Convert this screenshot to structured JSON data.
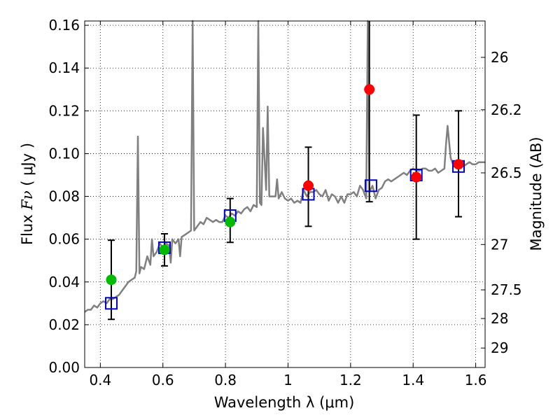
{
  "chart_data": {
    "type": "scatter",
    "xlabel": "Wavelength  λ (μm)",
    "ylabel_prefix": "Flux ",
    "ylabel_symbol": "Fν",
    "ylabel_units": " ( μJy )",
    "ylabel_right": "Magnitude (AB)",
    "xlim": [
      0.35,
      1.63
    ],
    "ylim": [
      0.0,
      0.162
    ],
    "x_ticks": [
      0.4,
      0.6,
      0.8,
      1.0,
      1.2,
      1.4,
      1.6
    ],
    "x_tick_labels": [
      "0.4",
      "0.6",
      "0.8",
      "1",
      "1.2",
      "1.4",
      "1.6"
    ],
    "y_ticks": [
      0.0,
      0.02,
      0.04,
      0.06,
      0.08,
      0.1,
      0.12,
      0.14,
      0.16
    ],
    "y_tick_labels": [
      "0.00",
      "0.02",
      "0.04",
      "0.06",
      "0.08",
      "0.10",
      "0.12",
      "0.14",
      "0.16"
    ],
    "right_ticks": [
      {
        "flux": 0.145,
        "label": "26"
      },
      {
        "flux": 0.1205,
        "label": "26.2"
      },
      {
        "flux": 0.091,
        "label": "26.5"
      },
      {
        "flux": 0.0575,
        "label": "27"
      },
      {
        "flux": 0.0363,
        "label": "27.5"
      },
      {
        "flux": 0.0229,
        "label": "28"
      },
      {
        "flux": 0.0091,
        "label": "29"
      }
    ],
    "grid": true,
    "colors": {
      "spectrum": "#808080",
      "model_box": "#0000cc",
      "optical": "#00bb00",
      "nir": "#ff0000",
      "errorbar": "#000000"
    },
    "series": [
      {
        "kind": "line",
        "x": [
          0.35,
          0.36,
          0.37,
          0.38,
          0.39,
          0.4,
          0.41,
          0.42,
          0.43,
          0.44,
          0.45,
          0.46,
          0.47,
          0.48,
          0.49,
          0.5,
          0.51,
          0.515,
          0.52,
          0.525,
          0.53,
          0.54,
          0.55,
          0.56,
          0.565,
          0.57,
          0.58,
          0.59,
          0.6,
          0.61,
          0.62,
          0.625,
          0.63,
          0.64,
          0.65,
          0.655,
          0.66,
          0.67,
          0.68,
          0.69,
          0.695,
          0.7,
          0.705,
          0.71,
          0.72,
          0.73,
          0.74,
          0.75,
          0.76,
          0.77,
          0.78,
          0.79,
          0.8,
          0.81,
          0.82,
          0.83,
          0.84,
          0.85,
          0.86,
          0.87,
          0.88,
          0.89,
          0.9,
          0.905,
          0.91,
          0.915,
          0.92,
          0.93,
          0.935,
          0.94,
          0.95,
          0.96,
          0.965,
          0.97,
          0.98,
          0.99,
          1.0,
          1.01,
          1.02,
          1.03,
          1.04,
          1.05,
          1.06,
          1.07,
          1.08,
          1.09,
          1.1,
          1.11,
          1.12,
          1.13,
          1.14,
          1.15,
          1.16,
          1.17,
          1.18,
          1.19,
          1.2,
          1.21,
          1.22,
          1.23,
          1.24,
          1.25,
          1.255,
          1.26,
          1.27,
          1.28,
          1.29,
          1.3,
          1.31,
          1.32,
          1.33,
          1.34,
          1.35,
          1.36,
          1.37,
          1.38,
          1.39,
          1.4,
          1.41,
          1.42,
          1.43,
          1.44,
          1.45,
          1.46,
          1.47,
          1.48,
          1.49,
          1.5,
          1.505,
          1.51,
          1.52,
          1.53,
          1.54,
          1.55,
          1.56,
          1.57,
          1.58,
          1.59,
          1.6,
          1.61,
          1.62,
          1.63
        ],
        "y": [
          0.026,
          0.027,
          0.027,
          0.029,
          0.028,
          0.03,
          0.031,
          0.03,
          0.032,
          0.032,
          0.033,
          0.034,
          0.036,
          0.038,
          0.04,
          0.041,
          0.042,
          0.045,
          0.108,
          0.044,
          0.047,
          0.046,
          0.052,
          0.048,
          0.06,
          0.052,
          0.054,
          0.058,
          0.056,
          0.058,
          0.057,
          0.049,
          0.06,
          0.058,
          0.06,
          0.052,
          0.061,
          0.062,
          0.063,
          0.064,
          0.162,
          0.064,
          0.065,
          0.066,
          0.068,
          0.067,
          0.07,
          0.069,
          0.068,
          0.069,
          0.068,
          0.068,
          0.071,
          0.07,
          0.072,
          0.071,
          0.073,
          0.072,
          0.074,
          0.075,
          0.073,
          0.076,
          0.075,
          0.162,
          0.077,
          0.076,
          0.112,
          0.083,
          0.122,
          0.08,
          0.08,
          0.08,
          0.088,
          0.079,
          0.082,
          0.079,
          0.078,
          0.079,
          0.077,
          0.078,
          0.077,
          0.083,
          0.08,
          0.082,
          0.082,
          0.083,
          0.081,
          0.08,
          0.083,
          0.078,
          0.081,
          0.08,
          0.077,
          0.08,
          0.077,
          0.081,
          0.081,
          0.082,
          0.08,
          0.085,
          0.083,
          0.079,
          0.162,
          0.082,
          0.085,
          0.079,
          0.083,
          0.084,
          0.087,
          0.088,
          0.087,
          0.088,
          0.089,
          0.09,
          0.091,
          0.09,
          0.092,
          0.093,
          0.092,
          0.092,
          0.093,
          0.093,
          0.092,
          0.092,
          0.093,
          0.091,
          0.092,
          0.093,
          0.104,
          0.113,
          0.098,
          0.094,
          0.094,
          0.094,
          0.094,
          0.095,
          0.096,
          0.095,
          0.095,
          0.096,
          0.096,
          0.096
        ]
      },
      {
        "kind": "model",
        "name": "",
        "x": [
          0.435,
          0.605,
          0.815,
          1.065,
          1.265,
          1.41,
          1.545
        ],
        "y": [
          0.03,
          0.056,
          0.071,
          0.081,
          0.085,
          0.09,
          0.094
        ]
      },
      {
        "kind": "points",
        "group": "optical",
        "x": [
          0.435,
          0.605,
          0.815
        ],
        "y": [
          0.041,
          0.055,
          0.068
        ],
        "yerr_low": [
          0.0225,
          0.0475,
          0.0585
        ],
        "yerr_high": [
          0.0595,
          0.0625,
          0.079
        ]
      },
      {
        "kind": "points",
        "group": "nir",
        "x": [
          1.065,
          1.26,
          1.41,
          1.545
        ],
        "y": [
          0.085,
          0.13,
          0.089,
          0.095
        ],
        "yerr_low": [
          0.066,
          0.0775,
          0.06,
          0.0705
        ],
        "yerr_high": [
          0.103,
          0.162,
          0.118,
          0.12
        ]
      }
    ]
  }
}
